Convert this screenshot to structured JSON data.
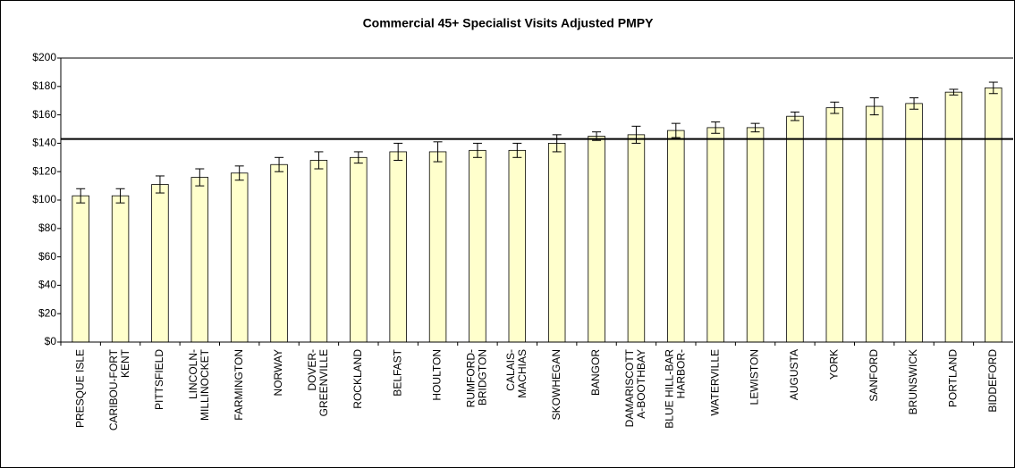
{
  "chart_data": {
    "type": "bar",
    "title": "Commercial 45+ Specialist Visits Adjusted PMPY",
    "categories": [
      [
        "PRESQUE ISLE"
      ],
      [
        "CARIBOU-FORT",
        "KENT"
      ],
      [
        "PITTSFIELD"
      ],
      [
        "LINCOLN-",
        "MILLINOCKET"
      ],
      [
        "FARMINGTON"
      ],
      [
        "NORWAY"
      ],
      [
        "DOVER-",
        "GREENVILLE"
      ],
      [
        "ROCKLAND"
      ],
      [
        "BELFAST"
      ],
      [
        "HOULTON"
      ],
      [
        "RUMFORD-",
        "BRIDGTON"
      ],
      [
        "CALAIS-",
        "MACHIAS"
      ],
      [
        "SKOWHEGAN"
      ],
      [
        "BANGOR"
      ],
      [
        "DAMARISCOTT",
        "A-BOOTHBAY"
      ],
      [
        "BLUE HILL-BAR",
        "HARBOR-"
      ],
      [
        "WATERVILLE"
      ],
      [
        "LEWISTON"
      ],
      [
        "AUGUSTA"
      ],
      [
        "YORK"
      ],
      [
        "SANFORD"
      ],
      [
        "BRUNSWICK"
      ],
      [
        "PORTLAND"
      ],
      [
        "BIDDEFORD"
      ]
    ],
    "values": [
      103,
      103,
      111,
      116,
      119,
      125,
      128,
      130,
      134,
      134,
      135,
      135,
      140,
      145,
      146,
      149,
      151,
      151,
      159,
      165,
      166,
      168,
      176,
      179
    ],
    "errors": [
      5,
      5,
      6,
      6,
      5,
      5,
      6,
      4,
      6,
      7,
      5,
      5,
      6,
      3,
      6,
      5,
      4,
      3,
      3,
      4,
      6,
      4,
      2,
      4
    ],
    "reference_line": 143,
    "color": "#ffffcc",
    "ylim": [
      0,
      200
    ],
    "yticks": [
      {
        "value": 0,
        "label": "$0"
      },
      {
        "value": 20,
        "label": "$20"
      },
      {
        "value": 40,
        "label": "$40"
      },
      {
        "value": 60,
        "label": "$60"
      },
      {
        "value": 80,
        "label": "$80"
      },
      {
        "value": 100,
        "label": "$100"
      },
      {
        "value": 120,
        "label": "$120"
      },
      {
        "value": 140,
        "label": "$140"
      },
      {
        "value": 160,
        "label": "$160"
      },
      {
        "value": 180,
        "label": "$180"
      },
      {
        "value": 200,
        "label": "$200"
      }
    ],
    "grid": false
  }
}
